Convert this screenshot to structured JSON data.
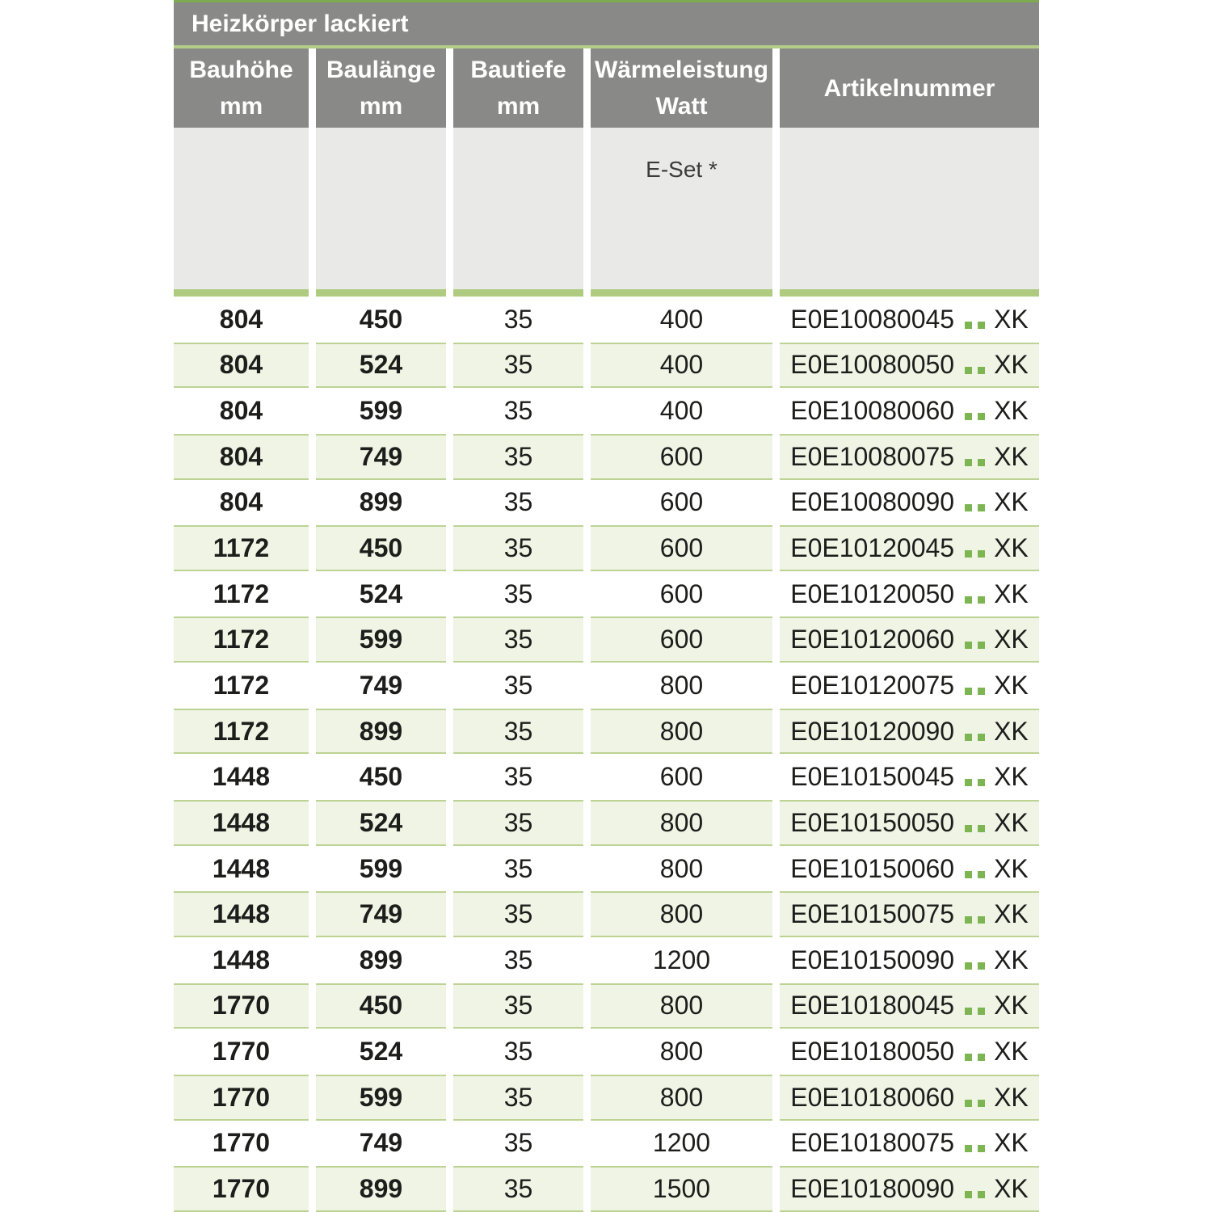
{
  "title": "Heizkörper lackiert",
  "header": {
    "col1": {
      "line1": "Bauhöhe",
      "line2": "mm"
    },
    "col2": {
      "line1": "Baulänge",
      "line2": "mm"
    },
    "col3": {
      "line1": "Bautiefe",
      "line2": "mm"
    },
    "col4": {
      "line1": "Wärmeleistung",
      "line2": "Watt"
    },
    "col5": {
      "line1": "Artikelnummer"
    }
  },
  "subheader": {
    "eset": "E-Set *"
  },
  "icons": {
    "color_code_placeholder_dot": "▪"
  },
  "rows": [
    {
      "hoehe": "804",
      "laenge": "450",
      "tiefe": "35",
      "watt": "400",
      "artikel": "E0E10080045",
      "suffix": "XK"
    },
    {
      "hoehe": "804",
      "laenge": "524",
      "tiefe": "35",
      "watt": "400",
      "artikel": "E0E10080050",
      "suffix": "XK"
    },
    {
      "hoehe": "804",
      "laenge": "599",
      "tiefe": "35",
      "watt": "400",
      "artikel": "E0E10080060",
      "suffix": "XK"
    },
    {
      "hoehe": "804",
      "laenge": "749",
      "tiefe": "35",
      "watt": "600",
      "artikel": "E0E10080075",
      "suffix": "XK"
    },
    {
      "hoehe": "804",
      "laenge": "899",
      "tiefe": "35",
      "watt": "600",
      "artikel": "E0E10080090",
      "suffix": "XK"
    },
    {
      "hoehe": "1172",
      "laenge": "450",
      "tiefe": "35",
      "watt": "600",
      "artikel": "E0E10120045",
      "suffix": "XK"
    },
    {
      "hoehe": "1172",
      "laenge": "524",
      "tiefe": "35",
      "watt": "600",
      "artikel": "E0E10120050",
      "suffix": "XK"
    },
    {
      "hoehe": "1172",
      "laenge": "599",
      "tiefe": "35",
      "watt": "600",
      "artikel": "E0E10120060",
      "suffix": "XK"
    },
    {
      "hoehe": "1172",
      "laenge": "749",
      "tiefe": "35",
      "watt": "800",
      "artikel": "E0E10120075",
      "suffix": "XK"
    },
    {
      "hoehe": "1172",
      "laenge": "899",
      "tiefe": "35",
      "watt": "800",
      "artikel": "E0E10120090",
      "suffix": "XK"
    },
    {
      "hoehe": "1448",
      "laenge": "450",
      "tiefe": "35",
      "watt": "600",
      "artikel": "E0E10150045",
      "suffix": "XK"
    },
    {
      "hoehe": "1448",
      "laenge": "524",
      "tiefe": "35",
      "watt": "800",
      "artikel": "E0E10150050",
      "suffix": "XK"
    },
    {
      "hoehe": "1448",
      "laenge": "599",
      "tiefe": "35",
      "watt": "800",
      "artikel": "E0E10150060",
      "suffix": "XK"
    },
    {
      "hoehe": "1448",
      "laenge": "749",
      "tiefe": "35",
      "watt": "800",
      "artikel": "E0E10150075",
      "suffix": "XK"
    },
    {
      "hoehe": "1448",
      "laenge": "899",
      "tiefe": "35",
      "watt": "1200",
      "artikel": "E0E10150090",
      "suffix": "XK"
    },
    {
      "hoehe": "1770",
      "laenge": "450",
      "tiefe": "35",
      "watt": "800",
      "artikel": "E0E10180045",
      "suffix": "XK"
    },
    {
      "hoehe": "1770",
      "laenge": "524",
      "tiefe": "35",
      "watt": "800",
      "artikel": "E0E10180050",
      "suffix": "XK"
    },
    {
      "hoehe": "1770",
      "laenge": "599",
      "tiefe": "35",
      "watt": "800",
      "artikel": "E0E10180060",
      "suffix": "XK"
    },
    {
      "hoehe": "1770",
      "laenge": "749",
      "tiefe": "35",
      "watt": "1200",
      "artikel": "E0E10180075",
      "suffix": "XK"
    },
    {
      "hoehe": "1770",
      "laenge": "899",
      "tiefe": "35",
      "watt": "1500",
      "artikel": "E0E10180090",
      "suffix": "XK"
    }
  ],
  "colors": {
    "header_gray": "#898987",
    "subheader_gray": "#e9e9e8",
    "top_line_green": "#7dab51",
    "separator_green": "#b3cd87",
    "bar_green": "#aecb80",
    "row_border_green": "#bcd394",
    "row_bg_green": "#eff4e5",
    "dot_green": "#7cb551",
    "text_dark": "#1d1d1b"
  }
}
